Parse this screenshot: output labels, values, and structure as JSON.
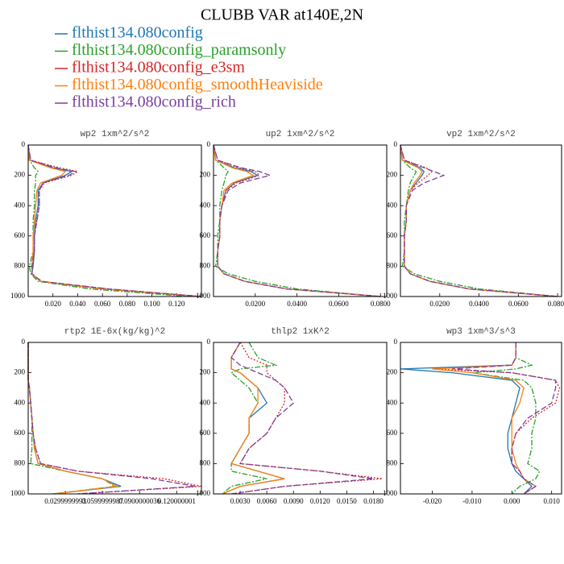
{
  "title": "CLUBB VAR at140E,2N",
  "legend": [
    {
      "name": "flthist134.080config",
      "color": "#1f77b4",
      "style": "solid"
    },
    {
      "name": "flthist134.080config_paramsonly",
      "color": "#2ca02c",
      "style": "dashdot"
    },
    {
      "name": "flthist134.080config_e3sm",
      "color": "#d62728",
      "style": "dotted"
    },
    {
      "name": "flthist134.080config_smoothHeaviside",
      "color": "#ff7f0e",
      "style": "solid"
    },
    {
      "name": "flthist134.080config_rich",
      "color": "#7b3f9e",
      "style": "dashed"
    }
  ],
  "chart_data": [
    {
      "type": "line",
      "title": "wp2  1xm^2/s^2",
      "invert_y": true,
      "y": [
        0,
        100,
        150,
        175,
        200,
        250,
        300,
        400,
        500,
        600,
        700,
        800,
        850,
        900,
        950,
        1000
      ],
      "xlim": [
        0,
        0.14
      ],
      "xticks": [
        {
          "value": 0.02,
          "label": "0.020"
        },
        {
          "value": 0.04,
          "label": "0.040"
        },
        {
          "value": 0.06,
          "label": "0.060"
        },
        {
          "value": 0.08,
          "label": "0.080"
        },
        {
          "value": 0.1,
          "label": "0.100"
        },
        {
          "value": 0.12,
          "label": "0.120"
        }
      ],
      "ylim": [
        0,
        1000
      ],
      "yticks": [
        0,
        200,
        400,
        600,
        800,
        1000
      ],
      "series": [
        {
          "values": [
            0,
            0.001,
            0.02,
            0.035,
            0.03,
            0.012,
            0.008,
            0.008,
            0.006,
            0.005,
            0.005,
            0.004,
            0.003,
            0.01,
            0.06,
            0.14
          ]
        },
        {
          "values": [
            0,
            0.001,
            0.005,
            0.008,
            0.006,
            0.006,
            0.005,
            0.005,
            0.004,
            0.004,
            0.004,
            0.001,
            0.002,
            0.008,
            0.05,
            0.13
          ]
        },
        {
          "values": [
            0,
            0.002,
            0.025,
            0.04,
            0.035,
            0.013,
            0.009,
            0.009,
            0.007,
            0.005,
            0.005,
            0.003,
            0.003,
            0.01,
            0.065,
            0.14
          ]
        },
        {
          "values": [
            0,
            0.001,
            0.018,
            0.03,
            0.027,
            0.01,
            0.007,
            0.006,
            0.005,
            0.004,
            0.004,
            0.003,
            0.003,
            0.01,
            0.06,
            0.14
          ]
        },
        {
          "values": [
            0,
            0.002,
            0.022,
            0.038,
            0.033,
            0.012,
            0.009,
            0.009,
            0.007,
            0.005,
            0.005,
            0.003,
            0.003,
            0.011,
            0.065,
            0.14
          ]
        }
      ]
    },
    {
      "type": "line",
      "title": "up2  1xm^2/s^2",
      "invert_y": true,
      "y": [
        0,
        100,
        150,
        175,
        200,
        250,
        300,
        400,
        500,
        600,
        700,
        800,
        850,
        900,
        950,
        1000
      ],
      "xlim": [
        0,
        0.083
      ],
      "xticks": [
        {
          "value": 0.02,
          "label": "0.0200"
        },
        {
          "value": 0.04,
          "label": "0.0400"
        },
        {
          "value": 0.06,
          "label": "0.0600"
        },
        {
          "value": 0.08,
          "label": "0.0800"
        }
      ],
      "ylim": [
        0,
        1000
      ],
      "yticks": [
        0,
        200,
        400,
        600,
        800,
        1000
      ],
      "series": [
        {
          "values": [
            0,
            0.001,
            0.01,
            0.018,
            0.021,
            0.01,
            0.006,
            0.004,
            0.003,
            0.003,
            0.002,
            0.002,
            0.005,
            0.015,
            0.035,
            0.08
          ]
        },
        {
          "values": [
            0,
            0.001,
            0.005,
            0.007,
            0.006,
            0.005,
            0.004,
            0.003,
            0.003,
            0.002,
            0.002,
            0.001,
            0.007,
            0.02,
            0.04,
            0.08
          ]
        },
        {
          "values": [
            0,
            0.002,
            0.012,
            0.02,
            0.022,
            0.011,
            0.006,
            0.004,
            0.003,
            0.003,
            0.002,
            0.002,
            0.005,
            0.015,
            0.035,
            0.08
          ]
        },
        {
          "values": [
            0,
            0.001,
            0.009,
            0.016,
            0.019,
            0.009,
            0.005,
            0.004,
            0.003,
            0.003,
            0.002,
            0.002,
            0.005,
            0.015,
            0.035,
            0.08
          ]
        },
        {
          "values": [
            0,
            0.002,
            0.013,
            0.022,
            0.027,
            0.013,
            0.007,
            0.004,
            0.003,
            0.003,
            0.002,
            0.002,
            0.005,
            0.015,
            0.035,
            0.08
          ]
        }
      ]
    },
    {
      "type": "line",
      "title": "vp2  1xm^2/s^2",
      "invert_y": true,
      "y": [
        0,
        100,
        150,
        175,
        200,
        250,
        300,
        400,
        500,
        600,
        700,
        800,
        850,
        900,
        950,
        1000
      ],
      "xlim": [
        0,
        0.082
      ],
      "xticks": [
        {
          "value": 0.02,
          "label": "0.0200"
        },
        {
          "value": 0.04,
          "label": "0.0400"
        },
        {
          "value": 0.06,
          "label": "0.0600"
        },
        {
          "value": 0.08,
          "label": "0.0800"
        }
      ],
      "ylim": [
        0,
        1000
      ],
      "yticks": [
        0,
        200,
        400,
        600,
        800,
        1000
      ],
      "series": [
        {
          "values": [
            0,
            0.001,
            0.01,
            0.012,
            0.011,
            0.008,
            0.005,
            0.003,
            0.003,
            0.002,
            0.002,
            0.002,
            0.005,
            0.015,
            0.035,
            0.08
          ]
        },
        {
          "values": [
            0,
            0.001,
            0.005,
            0.008,
            0.007,
            0.005,
            0.004,
            0.003,
            0.002,
            0.002,
            0.002,
            0.001,
            0.007,
            0.02,
            0.04,
            0.08
          ]
        },
        {
          "values": [
            0,
            0.002,
            0.013,
            0.016,
            0.014,
            0.009,
            0.005,
            0.003,
            0.003,
            0.002,
            0.002,
            0.002,
            0.005,
            0.015,
            0.035,
            0.08
          ]
        },
        {
          "values": [
            0,
            0.001,
            0.009,
            0.011,
            0.01,
            0.007,
            0.005,
            0.003,
            0.003,
            0.002,
            0.002,
            0.002,
            0.005,
            0.015,
            0.035,
            0.08
          ]
        },
        {
          "values": [
            0,
            0.002,
            0.012,
            0.017,
            0.022,
            0.012,
            0.006,
            0.003,
            0.003,
            0.002,
            0.002,
            0.002,
            0.005,
            0.015,
            0.035,
            0.08
          ]
        }
      ]
    },
    {
      "type": "line",
      "title": "rtp2  1E-6x(kg/kg)^2",
      "invert_y": true,
      "y": [
        0,
        100,
        150,
        175,
        200,
        250,
        300,
        400,
        500,
        600,
        700,
        800,
        850,
        900,
        950,
        1000
      ],
      "xlim": [
        0,
        0.14
      ],
      "xticks": [
        {
          "value": 0.03,
          "label": "0.0299999993"
        },
        {
          "value": 0.06,
          "label": "0.0599999987"
        },
        {
          "value": 0.09,
          "label": "0.0900000036"
        },
        {
          "value": 0.12,
          "label": "0.120000001"
        }
      ],
      "ylim": [
        0,
        1000
      ],
      "yticks": [
        0,
        200,
        400,
        600,
        800,
        1000
      ],
      "series": [
        {
          "values": [
            0,
            0,
            0,
            0,
            0,
            0,
            0.001,
            0.002,
            0.003,
            0.004,
            0.005,
            0.008,
            0.03,
            0.06,
            0.075,
            0.02
          ]
        },
        {
          "values": [
            0,
            0,
            0,
            0,
            0,
            0,
            0.001,
            0.002,
            0.003,
            0.003,
            0.003,
            0.002,
            0.03,
            0.06,
            0.07,
            0.02
          ]
        },
        {
          "values": [
            0,
            0,
            0,
            0,
            0,
            0,
            0.001,
            0.002,
            0.003,
            0.004,
            0.006,
            0.01,
            0.04,
            0.11,
            0.14,
            0.04
          ]
        },
        {
          "values": [
            0,
            0,
            0,
            0,
            0,
            0,
            0.001,
            0.002,
            0.003,
            0.004,
            0.005,
            0.008,
            0.03,
            0.06,
            0.072,
            0.02
          ]
        },
        {
          "values": [
            0,
            0,
            0,
            0,
            0,
            0,
            0.001,
            0.002,
            0.003,
            0.004,
            0.006,
            0.01,
            0.04,
            0.1,
            0.135,
            0.04
          ]
        }
      ]
    },
    {
      "type": "line",
      "title": "thlp2  1xK^2",
      "invert_y": true,
      "y": [
        0,
        100,
        150,
        175,
        200,
        250,
        300,
        400,
        500,
        600,
        700,
        800,
        850,
        900,
        950,
        1000
      ],
      "xlim": [
        0,
        0.0195
      ],
      "xticks": [
        {
          "value": 0.003,
          "label": "0.0030"
        },
        {
          "value": 0.006,
          "label": "0.0060"
        },
        {
          "value": 0.009,
          "label": "0.0090"
        },
        {
          "value": 0.012,
          "label": "0.0120"
        },
        {
          "value": 0.015,
          "label": "0.0150"
        },
        {
          "value": 0.018,
          "label": "0.0180"
        }
      ],
      "ylim": [
        0,
        1000
      ],
      "yticks": [
        0,
        200,
        400,
        600,
        800,
        1000
      ],
      "series": [
        {
          "values": [
            0.003,
            0.002,
            0.002,
            0.002,
            0.003,
            0.004,
            0.005,
            0.006,
            0.004,
            0.004,
            0.003,
            0.002,
            0.005,
            0.008,
            0.003,
            0.001
          ]
        },
        {
          "values": [
            0.004,
            0.005,
            0.007,
            0.003,
            0.002,
            0.003,
            0.004,
            0.005,
            0.004,
            0.004,
            0.003,
            0.002,
            0.002,
            0.006,
            0.002,
            0.001
          ]
        },
        {
          "values": [
            0.003,
            0.004,
            0.006,
            0.006,
            0.006,
            0.007,
            0.008,
            0.008,
            0.007,
            0.006,
            0.004,
            0.003,
            0.012,
            0.019,
            0.008,
            0.002
          ]
        },
        {
          "values": [
            0.003,
            0.002,
            0.002,
            0.002,
            0.003,
            0.004,
            0.005,
            0.005,
            0.004,
            0.004,
            0.003,
            0.002,
            0.005,
            0.008,
            0.003,
            0.001
          ]
        },
        {
          "values": [
            0.003,
            0.002,
            0.003,
            0.004,
            0.005,
            0.007,
            0.008,
            0.009,
            0.007,
            0.006,
            0.004,
            0.003,
            0.012,
            0.018,
            0.008,
            0.002
          ]
        }
      ]
    },
    {
      "type": "line",
      "title": "wp3  1xm^3/s^3",
      "invert_y": true,
      "y": [
        0,
        100,
        150,
        175,
        200,
        250,
        300,
        400,
        500,
        600,
        700,
        800,
        850,
        900,
        950,
        1000
      ],
      "xlim": [
        -0.028,
        0.0125
      ],
      "xticks": [
        {
          "value": -0.02,
          "label": "-0.020"
        },
        {
          "value": -0.01,
          "label": "-0.010"
        },
        {
          "value": 0,
          "label": "0.000"
        },
        {
          "value": 0.01,
          "label": "0.010"
        }
      ],
      "ylim": [
        0,
        1000
      ],
      "yticks": [
        0,
        200,
        400,
        600,
        800,
        1000
      ],
      "series": [
        {
          "values": [
            0.001,
            0.001,
            0,
            -0.028,
            -0.015,
            0,
            0.002,
            0.001,
            0,
            -0.001,
            -0.001,
            0,
            0.001,
            0.003,
            0.005,
            0.003
          ]
        },
        {
          "values": [
            0.001,
            0.001,
            0.005,
            0.001,
            -0.01,
            0.003,
            0.005,
            0.006,
            0.006,
            0.005,
            0.005,
            0.004,
            0.007,
            0.006,
            0.002,
            0
          ]
        },
        {
          "values": [
            0.001,
            0.001,
            0,
            -0.02,
            0,
            0.011,
            0.012,
            0.011,
            0.005,
            0.001,
            0,
            0,
            0.002,
            0.003,
            0.006,
            0.003
          ]
        },
        {
          "values": [
            0.001,
            0.001,
            0,
            -0.02,
            -0.01,
            0.001,
            0.003,
            0.002,
            0,
            0,
            0,
            0.001,
            0.002,
            0.003,
            0.006,
            0.003
          ]
        },
        {
          "values": [
            0.001,
            0.001,
            0,
            -0.015,
            0,
            0.011,
            0.011,
            0.01,
            0.004,
            0.001,
            0,
            0,
            0.002,
            0.003,
            0.006,
            0.003
          ]
        }
      ]
    }
  ]
}
